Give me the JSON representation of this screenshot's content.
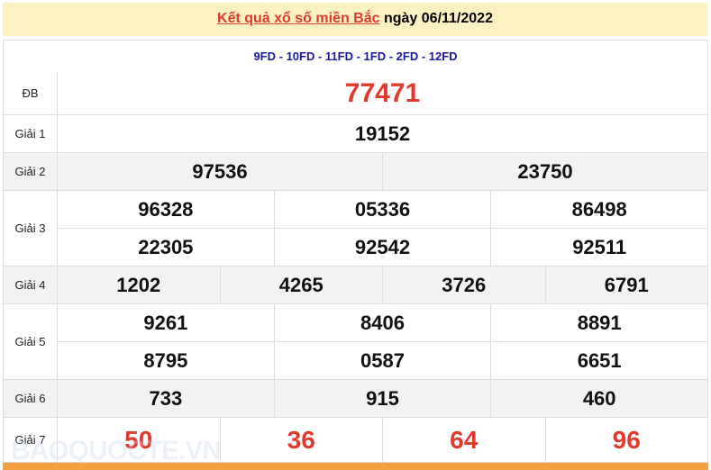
{
  "header": {
    "title_link": "Kết quả xổ số miền Bắc",
    "date_text": "ngày 06/11/2022"
  },
  "codes": "9FD - 10FD - 11FD - 1FD - 2FD - 12FD",
  "prizes": [
    {
      "label": "ĐB",
      "lines": [
        [
          "77471"
        ]
      ]
    },
    {
      "label": "Giải 1",
      "lines": [
        [
          "19152"
        ]
      ]
    },
    {
      "label": "Giải 2",
      "lines": [
        [
          "97536",
          "23750"
        ]
      ]
    },
    {
      "label": "Giải 3",
      "lines": [
        [
          "96328",
          "05336",
          "86498"
        ],
        [
          "22305",
          "92542",
          "92511"
        ]
      ]
    },
    {
      "label": "Giải 4",
      "lines": [
        [
          "1202",
          "4265",
          "3726",
          "6791"
        ]
      ]
    },
    {
      "label": "Giải 5",
      "lines": [
        [
          "9261",
          "8406",
          "8891"
        ],
        [
          "8795",
          "0587",
          "6651"
        ]
      ]
    },
    {
      "label": "Giải 6",
      "lines": [
        [
          "733",
          "915",
          "460"
        ]
      ]
    },
    {
      "label": "Giải 7",
      "lines": [
        [
          "50",
          "36",
          "64",
          "96"
        ]
      ]
    }
  ],
  "watermark": "BAOQUOCTE.VN",
  "colors": {
    "header_bg": "#fcf1c0",
    "highlight_red": "#e03a2f",
    "codes_blue": "#1a1aa0",
    "footer_orange": "#f4a13e"
  }
}
